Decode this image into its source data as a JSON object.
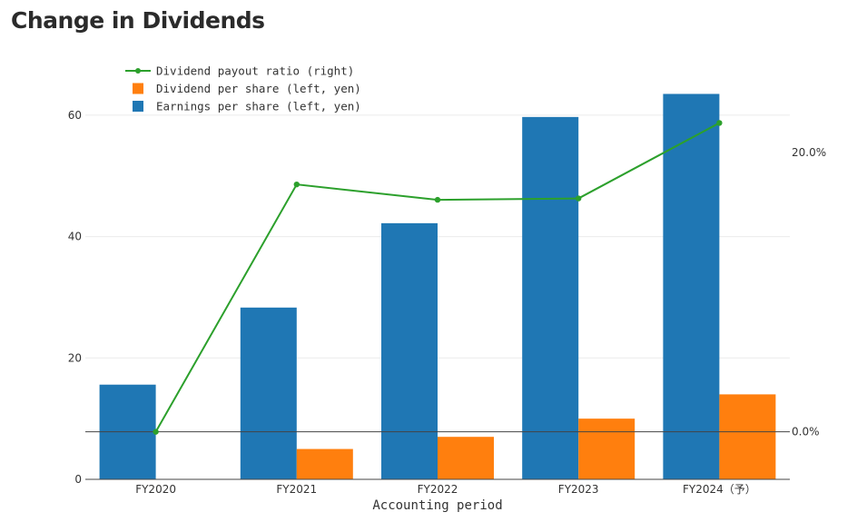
{
  "page": {
    "title": "Change in Dividends"
  },
  "chart_data": {
    "type": "bar",
    "categories": [
      "FY2020",
      "FY2021",
      "FY2022",
      "FY2023",
      "FY2024（予）"
    ],
    "xlabel": "Accounting  period",
    "ylabel": "",
    "ylim": [
      0,
      70
    ],
    "yticks": [
      "0",
      "20",
      "40",
      "60"
    ],
    "y2lim": [
      -0.034,
      0.27
    ],
    "y2ticks": [
      {
        "value": 0,
        "label": "0.0%"
      },
      {
        "value": 0.2,
        "label": "20.0%"
      }
    ],
    "grid": true,
    "legend_position": "top-left",
    "series": [
      {
        "name": "Earnings per share (left, yen)",
        "type": "bar",
        "axis": "left",
        "color": "#1f77b4",
        "values": [
          15.6,
          28.3,
          42.2,
          59.7,
          63.5
        ]
      },
      {
        "name": "Dividend per share (left, yen)",
        "type": "bar",
        "axis": "left",
        "color": "#ff7f0e",
        "values": [
          null,
          5.0,
          7.0,
          10.0,
          14.0
        ]
      },
      {
        "name": "Dividend payout ratio (right)",
        "type": "line",
        "axis": "right",
        "color": "#2ca02c",
        "values": [
          0.0,
          0.177,
          0.166,
          0.167,
          0.221
        ]
      }
    ],
    "legend_order": [
      2,
      1,
      0
    ]
  }
}
